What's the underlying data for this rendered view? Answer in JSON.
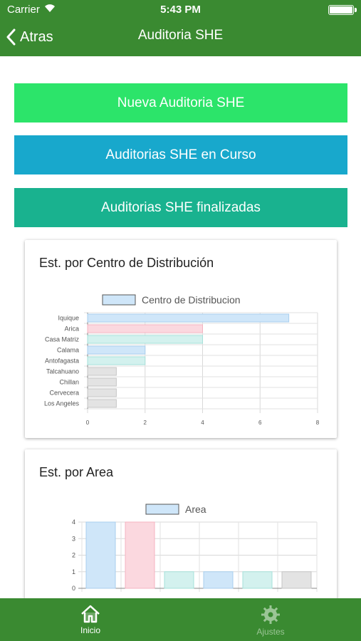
{
  "status": {
    "carrier": "Carrier",
    "time": "5:43 PM"
  },
  "nav": {
    "back_label": "Atras",
    "title": "Auditoria SHE"
  },
  "buttons": {
    "nueva": "Nueva Auditoria SHE",
    "en_curso": "Auditorias SHE en Curso",
    "finalizadas": "Auditorias SHE finalizadas"
  },
  "chart_data": [
    {
      "type": "bar",
      "orientation": "horizontal",
      "title": "Est. por Centro de Distribución",
      "categories": [
        "Iquique",
        "Arica",
        "Casa Matriz",
        "Calama",
        "Antofagasta",
        "Talcahuano",
        "Chillan",
        "Cervecera",
        "Los Angeles"
      ],
      "series": [
        {
          "name": "Centro de Distribucion",
          "values": [
            7,
            4,
            4,
            2,
            2,
            1,
            1,
            1,
            1
          ]
        }
      ],
      "colors": [
        "#cfe6f9",
        "#fbd8df",
        "#d3f1ee",
        "#cfe6f9",
        "#d3f1ee",
        "#e3e3e3",
        "#e3e3e3",
        "#e3e3e3",
        "#e3e3e3"
      ],
      "borders": [
        "#a8cfee",
        "#f4b3c0",
        "#a6e1da",
        "#a8cfee",
        "#a6e1da",
        "#c6c6c6",
        "#c6c6c6",
        "#c6c6c6",
        "#c6c6c6"
      ],
      "legend_color": "#cfe6f9",
      "xlim": [
        0,
        8
      ],
      "xticks": [
        "0",
        "2",
        "4",
        "6",
        "8"
      ],
      "grid": true,
      "legend": "top"
    },
    {
      "type": "bar",
      "title": "Est. por Area",
      "categories": [
        "",
        "",
        "",
        "",
        "",
        ""
      ],
      "series": [
        {
          "name": "Area",
          "values": [
            4,
            4,
            1,
            1,
            1,
            1
          ]
        }
      ],
      "colors": [
        "#cfe6f9",
        "#fbd8df",
        "#d3f1ee",
        "#cfe6f9",
        "#d3f1ee",
        "#e3e3e3"
      ],
      "borders": [
        "#a8cfee",
        "#f4b3c0",
        "#a6e1da",
        "#a8cfee",
        "#a6e1da",
        "#c6c6c6"
      ],
      "legend_color": "#cfe6f9",
      "ylim": [
        0,
        4
      ],
      "yticks": [
        "0",
        "1",
        "2",
        "3",
        "4"
      ],
      "grid": true,
      "legend": "top"
    }
  ],
  "tabbar": {
    "inicio": "Inicio",
    "ajustes": "Ajustes",
    "inicio_icon": "home-icon",
    "ajustes_icon": "gear-icon"
  },
  "colors": {
    "bar_green": "#3a8a31",
    "nueva": "#2ce46a",
    "en_curso": "#18a8cc",
    "finalizadas": "#19b28f"
  }
}
